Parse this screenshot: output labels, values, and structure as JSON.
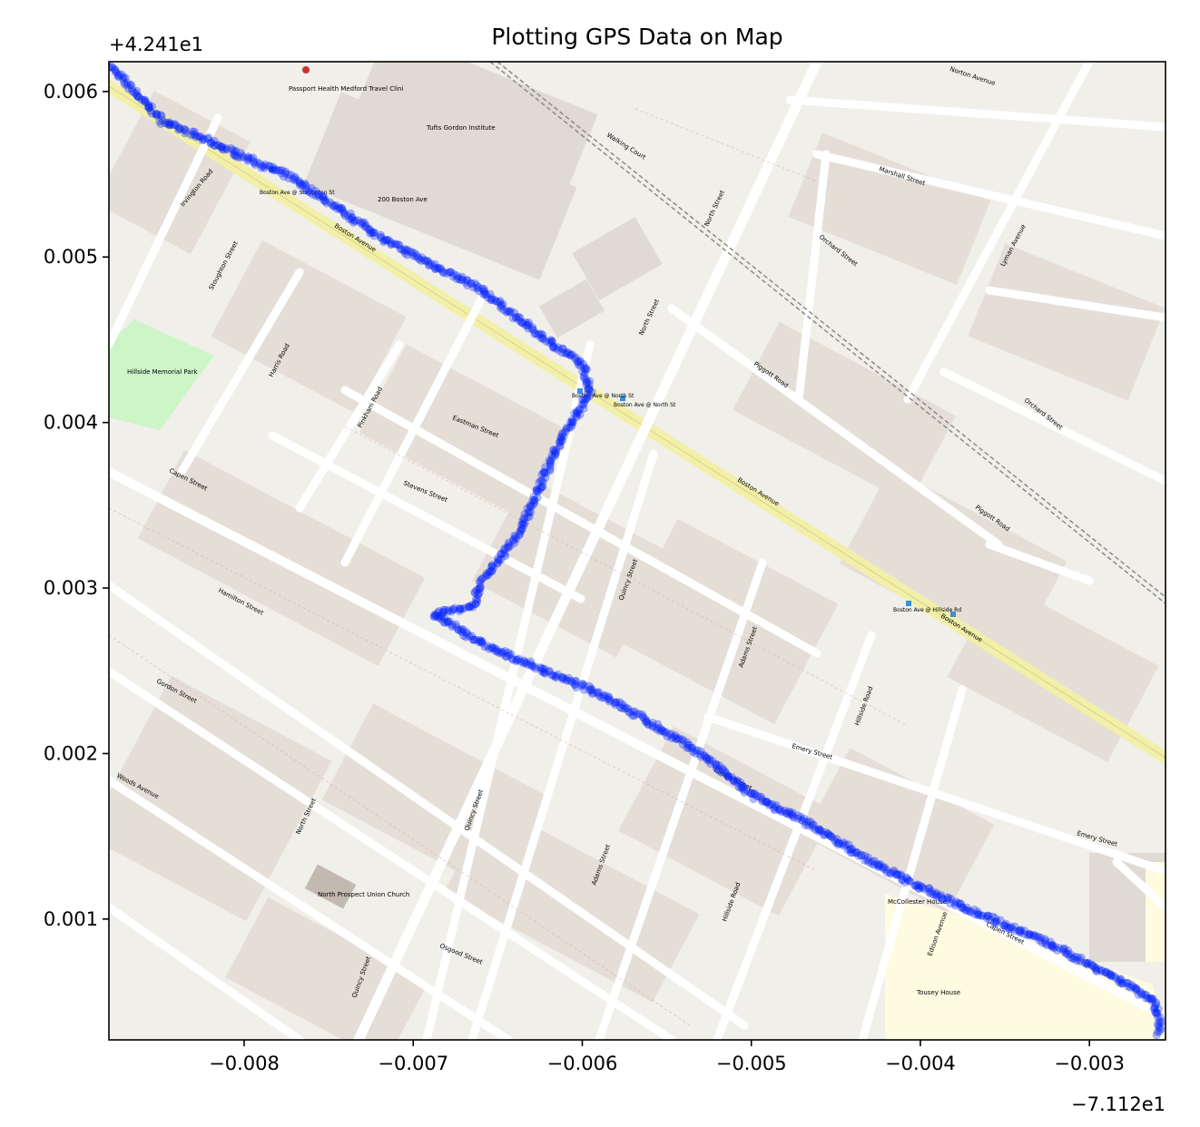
{
  "chart_data": {
    "type": "scatter",
    "title": "Plotting GPS Data on Map",
    "xlabel": "",
    "ylabel": "",
    "x_offset_text": "−7.112e1",
    "y_offset_text": "+4.241e1",
    "x_offset": -71.12,
    "y_offset": 42.41,
    "xlim": [
      -0.0088,
      -0.00255
    ],
    "ylim": [
      0.00027,
      0.00618
    ],
    "x_ticks": [
      -0.008,
      -0.007,
      -0.006,
      -0.005,
      -0.004,
      -0.003
    ],
    "x_tick_labels": [
      "−0.008",
      "−0.007",
      "−0.006",
      "−0.005",
      "−0.004",
      "−0.003"
    ],
    "y_ticks": [
      0.001,
      0.002,
      0.003,
      0.004,
      0.005,
      0.006
    ],
    "y_tick_labels": [
      "0.001",
      "0.002",
      "0.003",
      "0.004",
      "0.005",
      "0.006"
    ],
    "grid": false,
    "legend": "none",
    "background": "OpenStreetMap street-map basemap (Medford / Somerville, MA)",
    "marker_color": "#0022ff",
    "marker_alpha": 0.3,
    "track_waypoints": [
      {
        "x": -0.0088,
        "y": 0.00616
      },
      {
        "x": -0.00848,
        "y": 0.00582
      },
      {
        "x": -0.00772,
        "y": 0.00548
      },
      {
        "x": -0.00713,
        "y": 0.00508
      },
      {
        "x": -0.00661,
        "y": 0.00481
      },
      {
        "x": -0.00628,
        "y": 0.00455
      },
      {
        "x": -0.006,
        "y": 0.00435
      },
      {
        "x": -0.00595,
        "y": 0.00419
      },
      {
        "x": -0.00615,
        "y": 0.00385
      },
      {
        "x": -0.00638,
        "y": 0.00332
      },
      {
        "x": -0.0066,
        "y": 0.00303
      },
      {
        "x": -0.00665,
        "y": 0.00289
      },
      {
        "x": -0.00688,
        "y": 0.00284
      },
      {
        "x": -0.00655,
        "y": 0.00264
      },
      {
        "x": -0.00585,
        "y": 0.00234
      },
      {
        "x": -0.0053,
        "y": 0.002
      },
      {
        "x": -0.005,
        "y": 0.00175
      },
      {
        "x": -0.00465,
        "y": 0.00157
      },
      {
        "x": -0.00425,
        "y": 0.00132
      },
      {
        "x": -0.00385,
        "y": 0.00112
      },
      {
        "x": -0.00332,
        "y": 0.00089
      },
      {
        "x": -0.00285,
        "y": 0.00065
      },
      {
        "x": -0.00262,
        "y": 0.00051
      },
      {
        "x": -0.00258,
        "y": 0.00038
      },
      {
        "x": -0.0026,
        "y": 0.0003
      }
    ],
    "map_labels": [
      "Tufts Gordon Institute",
      "Passport Health Medford Travel Clini",
      "200 Boston Ave",
      "Boston Ave @ Stoughton St",
      "Boston Ave @ North St",
      "Boston Ave @ Hillside Rd",
      "Hillside Memorial Park",
      "North Prospect Union Church",
      "McCollester House",
      "Tousey House",
      "Boston Avenue",
      "North Street",
      "Capen Street",
      "Walking Court",
      "Marshall Street",
      "Norton Avenue",
      "Orchard Street",
      "Lyman Avenue",
      "Piggott Road",
      "Pinkham Road",
      "Eastman Street",
      "Stevens Street",
      "Harris Road",
      "Stoughton Street",
      "Irvington Road",
      "Hamilton Street",
      "Gordon Street",
      "Woods Avenue",
      "Osgood Street",
      "Quincy Street",
      "Adams Street",
      "Hillside Road",
      "Emery Street",
      "Edison Avenue"
    ]
  }
}
